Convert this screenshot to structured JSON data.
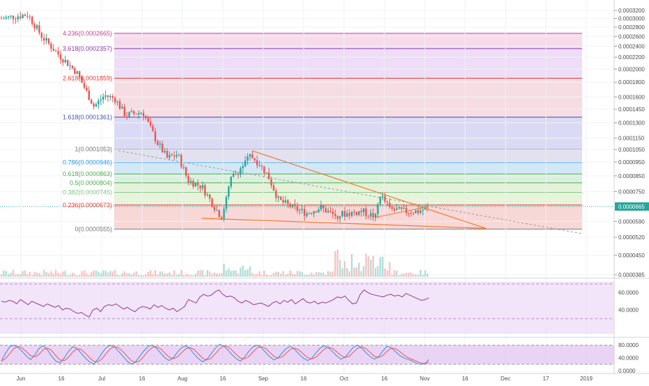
{
  "colors": {
    "bull": "#26a69a",
    "bear": "#ef5350",
    "rsi_line": "#8e3d8e",
    "rsi_band": "#ecd9f7",
    "stoch_k": "#2f8fd8",
    "stoch_d": "#ef5350",
    "stoch_band": "#e3c5f2",
    "wedge": "#f07a2a",
    "last_price_bg": "#26a69a"
  },
  "price_axis": {
    "ticks": [
      "0.0003200",
      "0.0003000",
      "0.0002800",
      "0.0002600",
      "0.0002400",
      "0.0002200",
      "0.0002000",
      "0.0001800",
      "0.0001600",
      "0.0001450",
      "0.0001300",
      "0.0001150",
      "0.0001050",
      "0.0000950",
      "0.0000850",
      "0.0000750",
      "0.0000590",
      "0.0000520",
      "0.0000450",
      "0.0000385"
    ],
    "last_price_label": "0.0000665"
  },
  "rsi_axis": {
    "ticks": [
      "60.0000",
      "40.0000"
    ]
  },
  "stoch_axis": {
    "ticks": [
      "80.0000",
      "40.0000",
      "0.0000"
    ]
  },
  "time_axis": {
    "ticks": [
      "Jun",
      "16",
      "Jul",
      "16",
      "Aug",
      "16",
      "Sep",
      "16",
      "Oct",
      "16",
      "Nov",
      "16",
      "Dec",
      "17",
      "2019"
    ]
  },
  "chart_data": {
    "type": "candlestick",
    "symbol_price_scale": "log",
    "last_price": 6.65e-05,
    "fib_levels": [
      {
        "label": "4.236(0.0002665)",
        "value": 0.0002665,
        "color": "#c2418f"
      },
      {
        "label": "3.618(0.0002357)",
        "value": 0.0002357,
        "color": "#8a3bb5"
      },
      {
        "label": "2.618(0.0001859)",
        "value": 0.0001859,
        "color": "#e53935"
      },
      {
        "label": "1.618(0.0001361)",
        "value": 0.0001361,
        "color": "#3f51b5"
      },
      {
        "label": "1(0.0001053)",
        "value": 0.0001053,
        "color": "#787878"
      },
      {
        "label": "0.786(0.0000946)",
        "value": 9.46e-05,
        "color": "#2196f3"
      },
      {
        "label": "0.618(0.0000863)",
        "value": 8.63e-05,
        "color": "#4caf50"
      },
      {
        "label": "0.5(0.0000804)",
        "value": 8.04e-05,
        "color": "#4caf50"
      },
      {
        "label": "0.382(0.0000745)",
        "value": 7.45e-05,
        "color": "#81c784"
      },
      {
        "label": "0.236(0.0000673)",
        "value": 6.73e-05,
        "color": "#e53935"
      },
      {
        "label": "0(0.0000555)",
        "value": 5.55e-05,
        "color": "#787878"
      }
    ],
    "rsi_series": [
      50,
      49,
      51,
      50,
      47,
      52,
      49,
      46,
      50,
      48,
      46,
      44,
      47,
      45,
      43,
      45,
      40,
      42,
      41,
      38,
      36,
      37,
      34,
      32,
      40,
      42,
      38,
      44,
      46,
      45,
      47,
      44,
      41,
      43,
      40,
      38,
      42,
      44,
      43,
      41,
      46,
      43,
      45,
      42,
      40,
      42,
      38,
      41,
      44,
      52,
      50,
      48,
      55,
      58,
      56,
      57,
      61,
      63,
      58,
      55,
      56,
      54,
      50,
      48,
      51,
      49,
      46,
      47,
      48,
      46,
      44,
      48,
      50,
      47,
      51,
      49,
      52,
      47,
      50,
      53,
      49,
      48,
      50,
      47,
      49,
      48,
      50,
      52,
      55,
      54,
      56,
      51,
      47,
      48,
      58,
      63,
      60,
      58,
      57,
      56,
      55,
      57,
      58,
      56,
      57,
      55,
      59,
      57,
      55,
      53,
      51,
      52,
      54
    ],
    "stoch_series_k": [
      30,
      55,
      75,
      80,
      72,
      60,
      45,
      35,
      50,
      70,
      78,
      65,
      45,
      30,
      25,
      40,
      60,
      75,
      70,
      55,
      40,
      28,
      20,
      35,
      55,
      72,
      80,
      74,
      60,
      45,
      30,
      20,
      28,
      45,
      62,
      76,
      80,
      70,
      55,
      40,
      32,
      40,
      58,
      72,
      78,
      68,
      52,
      38,
      28,
      35,
      52,
      70,
      82,
      78,
      65,
      50,
      38,
      30,
      42,
      60,
      74,
      80,
      72,
      58,
      44,
      34,
      40,
      56,
      70,
      76,
      66,
      52,
      40,
      32,
      38,
      55,
      70,
      78,
      72,
      60,
      46,
      36,
      42,
      58,
      74,
      80,
      70,
      56,
      44,
      36,
      44,
      62,
      76,
      72,
      60,
      48,
      40,
      36,
      30,
      24,
      20,
      22,
      35
    ]
  }
}
